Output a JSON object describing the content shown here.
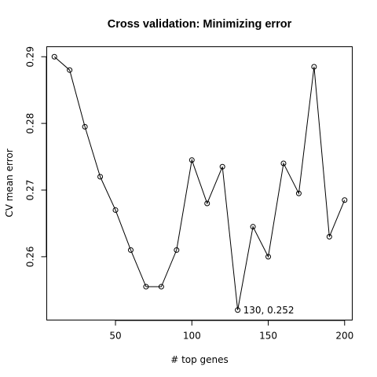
{
  "chart_data": {
    "type": "line",
    "title": "Cross validation: Minimizing error",
    "xlabel": "# top genes",
    "ylabel": "CV mean error",
    "xlim": [
      5,
      205
    ],
    "ylim": [
      0.2505,
      0.2915
    ],
    "x_ticks": [
      50,
      100,
      150,
      200
    ],
    "y_ticks": [
      0.26,
      0.27,
      0.28,
      0.29
    ],
    "x_tick_labels": [
      "50",
      "100",
      "150",
      "200"
    ],
    "y_tick_labels": [
      "0.26",
      "0.27",
      "0.28",
      "0.29"
    ],
    "grid": false,
    "legend": "none",
    "marker": "open-circle",
    "line_color": "#000000",
    "series": [
      {
        "x": [
          10,
          20,
          30,
          40,
          50,
          60,
          70,
          80,
          90,
          100,
          110,
          120,
          130,
          140,
          150,
          160,
          170,
          180,
          190,
          200
        ],
        "y": [
          0.29,
          0.288,
          0.2795,
          0.272,
          0.267,
          0.261,
          0.2555,
          0.2555,
          0.261,
          0.2745,
          0.268,
          0.2735,
          0.252,
          0.2645,
          0.26,
          0.274,
          0.2695,
          0.2885,
          0.263,
          0.2685
        ]
      }
    ],
    "annotations": [
      {
        "x": 130,
        "y": 0.252,
        "text": "130, 0.252"
      }
    ]
  }
}
